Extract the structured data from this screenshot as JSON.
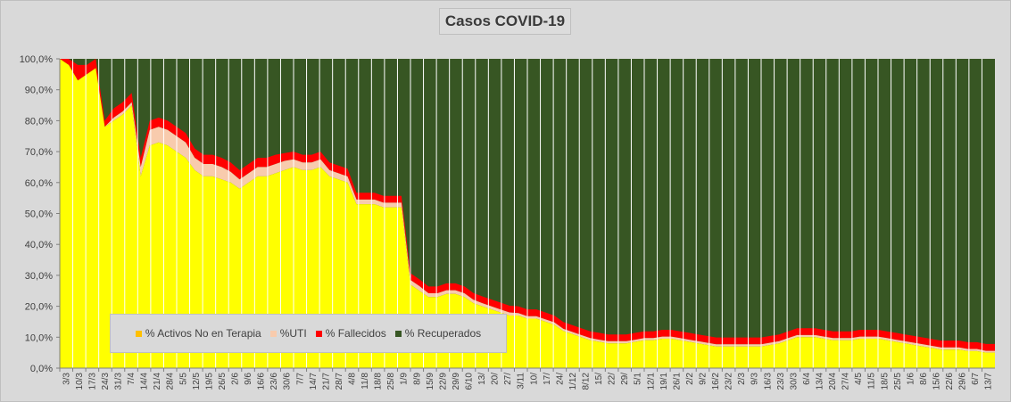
{
  "chart_data": {
    "type": "area",
    "title": "Casos COVID-19",
    "stacked": true,
    "percent_stacked": true,
    "ylim": [
      0,
      100
    ],
    "y_ticks": [
      "0,0%",
      "10,0%",
      "20,0%",
      "30,0%",
      "40,0%",
      "50,0%",
      "60,0%",
      "70,0%",
      "80,0%",
      "90,0%",
      "100,0%"
    ],
    "x_ticks": [
      "3/3",
      "10/3",
      "17/3",
      "24/3",
      "31/3",
      "7/4",
      "14/4",
      "21/4",
      "28/4",
      "5/5",
      "12/5",
      "19/5",
      "26/5",
      "2/6",
      "9/6",
      "16/6",
      "23/6",
      "30/6",
      "7/7",
      "14/7",
      "21/7",
      "28/7",
      "4/8",
      "11/8",
      "18/8",
      "25/8",
      "1/9",
      "8/9",
      "15/9",
      "22/9",
      "29/9",
      "6/10",
      "13/",
      "20/",
      "27/",
      "3/11",
      "10/",
      "17/",
      "24/",
      "1/12",
      "8/12",
      "15/",
      "22/",
      "29/",
      "5/1",
      "12/1",
      "19/1",
      "26/1",
      "2/2",
      "9/2",
      "16/2",
      "23/2",
      "2/3",
      "9/3",
      "16/3",
      "23/3",
      "30/3",
      "6/4",
      "13/4",
      "20/4",
      "27/4",
      "4/5",
      "11/5",
      "18/5",
      "25/5",
      "1/6",
      "8/6",
      "15/6",
      "22/6",
      "29/6",
      "6/7",
      "13/7"
    ],
    "grid": "vertical",
    "legend_position": "bottom-left",
    "series": [
      {
        "name": "% Activos No en Terapia",
        "color": "#ffff00",
        "values": [
          100,
          98,
          93,
          95,
          97,
          78,
          80,
          82,
          85,
          62,
          72,
          73,
          72,
          70,
          68,
          64,
          62,
          62,
          61,
          60,
          58,
          60,
          62,
          62,
          63,
          64,
          65,
          64,
          64,
          65,
          62,
          61,
          60,
          53,
          53,
          53,
          52,
          52,
          52,
          27,
          25,
          23,
          23,
          24,
          24,
          23,
          21,
          20,
          19,
          18,
          17,
          17,
          16,
          16,
          15,
          14,
          12,
          11,
          10,
          9,
          8.5,
          8,
          8,
          8,
          8.5,
          9,
          9,
          9.5,
          9.5,
          9,
          8.5,
          8,
          7.5,
          7,
          7,
          7,
          7,
          7,
          7,
          7.5,
          8,
          9,
          10,
          10,
          10,
          9.5,
          9,
          9,
          9,
          9.5,
          9.5,
          9.5,
          9,
          8.5,
          8,
          7.5,
          7,
          6.5,
          6,
          6,
          6,
          5.5,
          5.5,
          5,
          5
        ]
      },
      {
        "name": "%UTI",
        "color": "#f8cbad",
        "values": [
          0,
          0,
          0,
          0,
          0,
          0,
          1,
          1,
          1,
          3,
          5,
          5,
          5,
          5,
          5,
          4,
          4,
          4,
          4,
          3.5,
          3,
          3,
          3,
          3,
          3,
          3,
          2.5,
          2.5,
          2.5,
          2.5,
          2,
          2,
          2,
          1.5,
          1.5,
          1.5,
          1.5,
          1.5,
          1.5,
          1.5,
          1.5,
          1.2,
          1.2,
          1.2,
          1.2,
          1.2,
          1.1,
          1,
          1,
          1,
          1,
          0.8,
          0.8,
          0.8,
          0.8,
          0.8,
          0.7,
          0.7,
          0.7,
          0.7,
          0.7,
          0.7,
          0.7,
          0.7,
          0.7,
          0.7,
          0.7,
          0.7,
          0.7,
          0.7,
          0.7,
          0.7,
          0.7,
          0.7,
          0.7,
          0.7,
          0.7,
          0.7,
          0.7,
          0.7,
          0.7,
          0.7,
          0.7,
          0.7,
          0.7,
          0.7,
          0.7,
          0.7,
          0.7,
          0.7,
          0.7,
          0.7,
          0.7,
          0.7,
          0.7,
          0.7,
          0.7,
          0.7,
          0.7,
          0.7,
          0.7,
          0.7,
          0.7,
          0.6,
          0.6
        ]
      },
      {
        "name": "% Fallecidos",
        "color": "#ff0000",
        "values": [
          0,
          2,
          5,
          3,
          3,
          2,
          3,
          3,
          3,
          3,
          3,
          3,
          3,
          3,
          3,
          3,
          3,
          3,
          3,
          3,
          3,
          3,
          3,
          3,
          3,
          2.5,
          2.5,
          2.5,
          2.5,
          2.5,
          2.5,
          2.5,
          2.5,
          2.2,
          2.2,
          2.2,
          2.2,
          2.2,
          2.2,
          2.2,
          2.2,
          2.2,
          2.2,
          2.2,
          2.2,
          2.2,
          2.2,
          2.2,
          2.2,
          2.2,
          2.2,
          2.2,
          2.2,
          2.2,
          2.2,
          2.2,
          2.2,
          2.2,
          2.2,
          2.2,
          2.2,
          2.2,
          2.2,
          2.2,
          2.2,
          2.2,
          2.2,
          2.2,
          2.2,
          2.2,
          2.2,
          2.2,
          2.2,
          2.2,
          2.2,
          2.2,
          2.2,
          2.2,
          2.2,
          2.2,
          2.2,
          2.2,
          2.2,
          2.2,
          2.2,
          2.2,
          2.2,
          2.2,
          2.2,
          2.2,
          2.2,
          2.2,
          2.2,
          2.2,
          2.2,
          2.2,
          2.2,
          2.2,
          2.2,
          2.2,
          2.2,
          2.2,
          2.2,
          2.2,
          2.2
        ]
      },
      {
        "name": "% Recuperados",
        "color": "#375623",
        "values": "remainder"
      }
    ]
  },
  "colors": {
    "background": "#d9d9d9",
    "axis": "#7f7f7f",
    "text": "#404040",
    "gridline": "#ffffff"
  }
}
